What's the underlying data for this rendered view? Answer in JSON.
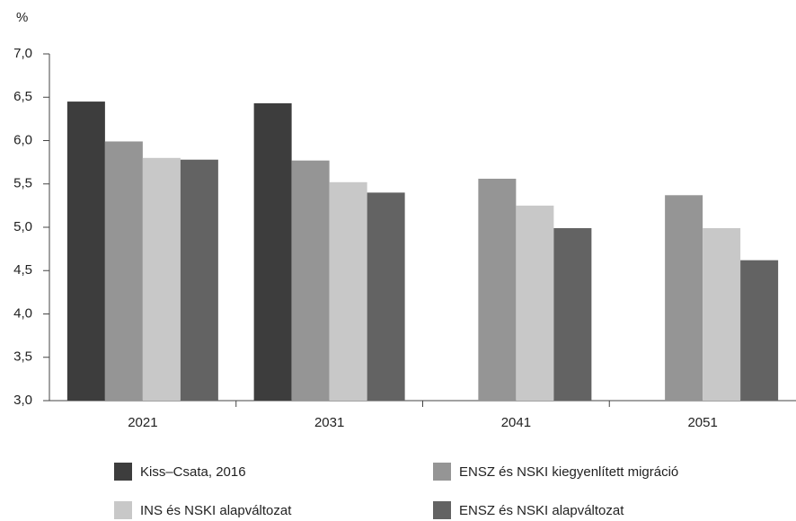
{
  "chart_data": {
    "type": "bar",
    "y_label": "%",
    "categories": [
      "2021",
      "2031",
      "2041",
      "2051"
    ],
    "series": [
      {
        "name": "Kiss–Csata, 2016",
        "color": "#3d3d3d",
        "values": [
          6.45,
          6.43,
          null,
          null
        ]
      },
      {
        "name": "ENSZ és NSKI kiegyenlített migráció",
        "color": "#959595",
        "values": [
          5.99,
          5.77,
          5.56,
          5.37
        ]
      },
      {
        "name": "INS és NSKI alapváltozat",
        "color": "#c8c8c8",
        "values": [
          5.8,
          5.52,
          5.25,
          4.99
        ]
      },
      {
        "name": "ENSZ és NSKI alapváltozat",
        "color": "#636363",
        "values": [
          5.78,
          5.4,
          4.99,
          4.62
        ]
      }
    ],
    "ylim": [
      3.0,
      7.0
    ],
    "yticks": [
      {
        "value": 3.0,
        "label": "3,0"
      },
      {
        "value": 3.5,
        "label": "3,5"
      },
      {
        "value": 4.0,
        "label": "4,0"
      },
      {
        "value": 4.5,
        "label": "4,5"
      },
      {
        "value": 5.0,
        "label": "5,0"
      },
      {
        "value": 5.5,
        "label": "5,5"
      },
      {
        "value": 6.0,
        "label": "6,0"
      },
      {
        "value": 6.5,
        "label": "6,5"
      },
      {
        "value": 7.0,
        "label": "7,0"
      }
    ],
    "grid": false
  }
}
